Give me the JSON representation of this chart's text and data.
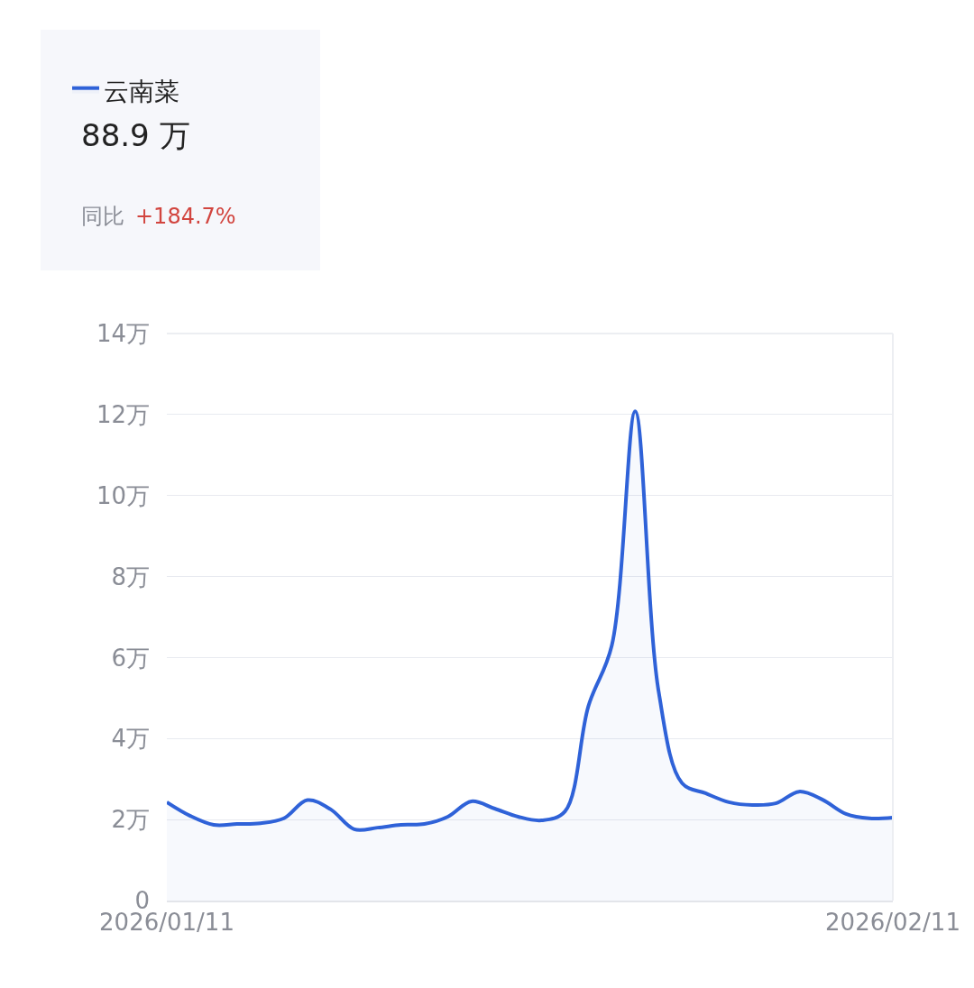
{
  "chart_data": {
    "type": "area",
    "x": [
      "2026-01-11",
      "2026-01-12",
      "2026-01-13",
      "2026-01-14",
      "2026-01-15",
      "2026-01-16",
      "2026-01-17",
      "2026-01-18",
      "2026-01-19",
      "2026-01-20",
      "2026-01-21",
      "2026-01-22",
      "2026-01-23",
      "2026-01-24",
      "2026-01-25",
      "2026-01-26",
      "2026-01-27",
      "2026-01-28",
      "2026-01-29",
      "2026-01-30",
      "2026-01-31",
      "2026-02-01",
      "2026-02-02",
      "2026-02-03",
      "2026-02-04",
      "2026-02-05",
      "2026-02-06",
      "2026-02-07",
      "2026-02-08",
      "2026-02-09",
      "2026-02-10",
      "2026-02-11"
    ],
    "series": [
      {
        "name": "云南菜",
        "color": "#2f62d8",
        "values": [
          2.43,
          2.09,
          1.87,
          1.89,
          1.91,
          2.03,
          2.48,
          2.25,
          1.76,
          1.8,
          1.87,
          1.89,
          2.07,
          2.45,
          2.27,
          2.07,
          1.98,
          2.2,
          4.8,
          6.3,
          12.08,
          5.16,
          2.9,
          2.65,
          2.43,
          2.36,
          2.4,
          2.69,
          2.49,
          2.14,
          2.03,
          2.05
        ]
      }
    ],
    "ylim": [
      0,
      14
    ],
    "yticks": [
      0,
      {
        "value": 2,
        "label": "2万"
      },
      {
        "value": 4,
        "label": "4万"
      },
      {
        "value": 6,
        "label": "6万"
      },
      {
        "value": 8,
        "label": "8万"
      },
      {
        "value": 10,
        "label": "10万"
      },
      {
        "value": 12,
        "label": "12万"
      },
      {
        "value": 14,
        "label": "14万"
      }
    ],
    "xlim": [
      "2026-01-11",
      "2026-02-11"
    ],
    "xticks": [
      {
        "value": "2026-01-11",
        "label": "2026/01/11"
      },
      {
        "value": "2026-02-11",
        "label": "2026/02/11"
      }
    ],
    "grid": "y",
    "legend": "top left",
    "annotations": [
      "88.9 万",
      "同比",
      "+184.7%"
    ]
  }
}
